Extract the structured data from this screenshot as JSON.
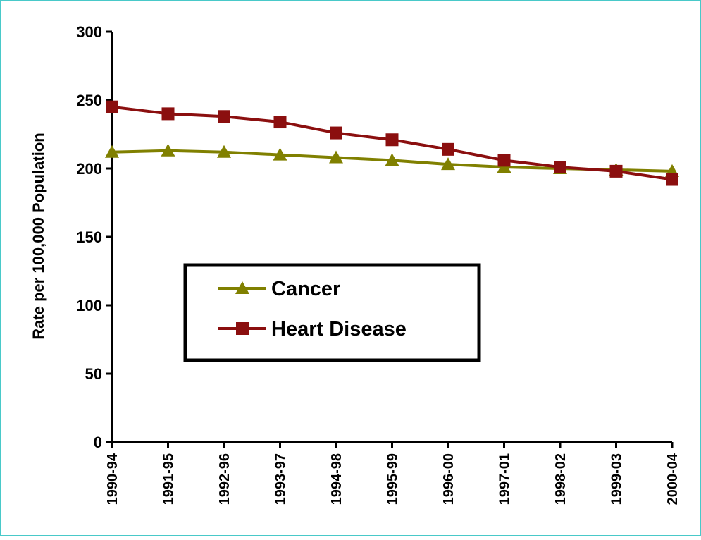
{
  "colors": {
    "frame": "#49c9c9",
    "axis": "#000000",
    "cancer": "#808000",
    "heart_disease": "#8b0f0f"
  },
  "chart_data": {
    "type": "line",
    "title": "",
    "xlabel": "",
    "ylabel": "Rate per 100,000 Population",
    "categories": [
      "1990-94",
      "1991-95",
      "1992-96",
      "1993-97",
      "1994-98",
      "1995-99",
      "1996-00",
      "1997-01",
      "1998-02",
      "1999-03",
      "2000-04"
    ],
    "ylim": [
      0,
      300
    ],
    "yticks": [
      "0",
      "50",
      "100",
      "150",
      "200",
      "250",
      "300"
    ],
    "grid": false,
    "legend_position": "center-left",
    "series": [
      {
        "name": "Cancer",
        "marker": "triangle",
        "color": "#808000",
        "values": [
          212,
          213,
          212,
          210,
          208,
          206,
          203,
          201,
          200,
          199,
          198
        ]
      },
      {
        "name": "Heart Disease",
        "marker": "square",
        "color": "#8b0f0f",
        "values": [
          245,
          240,
          238,
          234,
          226,
          221,
          214,
          206,
          201,
          198,
          192
        ]
      }
    ]
  }
}
